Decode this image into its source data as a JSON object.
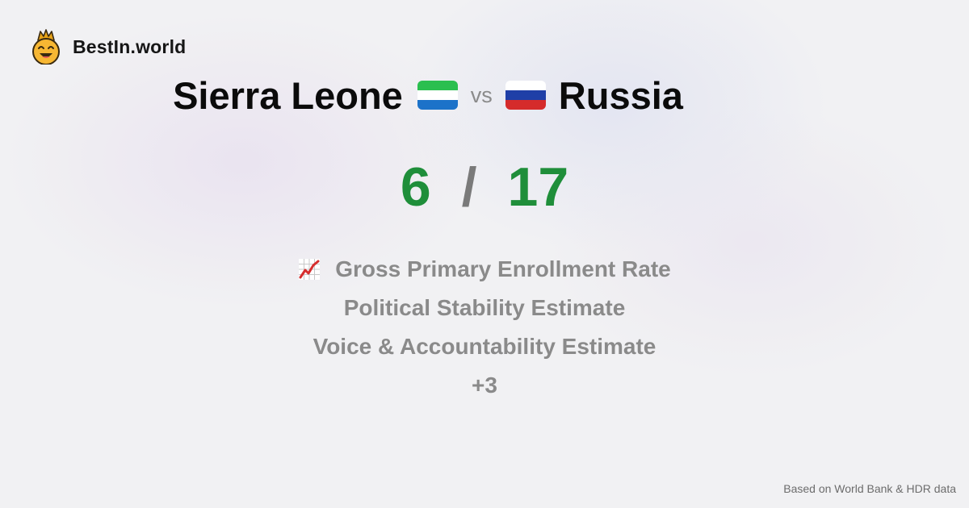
{
  "brand": {
    "name": "BestIn.world",
    "logo_icon": "smiling-crown-emoji-icon"
  },
  "comparison": {
    "left_country": "Sierra Leone",
    "right_country": "Russia",
    "vs_label": "vs",
    "left_flag_icon": "sierra-leone-flag-icon",
    "right_flag_icon": "russia-flag-icon"
  },
  "score": {
    "left": "6",
    "separator": "/",
    "right": "17"
  },
  "metrics": {
    "items": [
      "Gross Primary Enrollment Rate",
      "Political Stability Estimate",
      "Voice & Accountability Estimate"
    ],
    "more_label": "+3",
    "icon": "chart-increasing-icon"
  },
  "footer": {
    "source": "Based on World Bank & HDR data"
  },
  "colors": {
    "score_green": "#1f8e3a",
    "muted_gray": "#8a8a8a",
    "sierra_leone_green": "#2bbf4f",
    "sierra_leone_white": "#ffffff",
    "sierra_leone_blue": "#1c72c9",
    "russia_white": "#ffffff",
    "russia_blue": "#1f3fa7",
    "russia_red": "#d52b2b"
  }
}
